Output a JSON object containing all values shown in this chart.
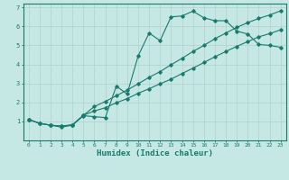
{
  "xlabel": "Humidex (Indice chaleur)",
  "ylabel": "",
  "bg_color": "#c5e8e4",
  "grid_color": "#b0d0cc",
  "line_color": "#1a7a6e",
  "spine_color": "#1a7a6e",
  "xlim": [
    -0.5,
    23.5
  ],
  "ylim": [
    0,
    7.2
  ],
  "xticks": [
    0,
    1,
    2,
    3,
    4,
    5,
    6,
    7,
    8,
    9,
    10,
    11,
    12,
    13,
    14,
    15,
    16,
    17,
    18,
    19,
    20,
    21,
    22,
    23
  ],
  "yticks": [
    1,
    2,
    3,
    4,
    5,
    6,
    7
  ],
  "line1_x": [
    0,
    1,
    2,
    3,
    4,
    5,
    6,
    7,
    8,
    9,
    10,
    11,
    12,
    13,
    14,
    15,
    16,
    17,
    18,
    19,
    20,
    21,
    22,
    23
  ],
  "line1_y": [
    1.1,
    0.9,
    0.8,
    0.7,
    0.8,
    1.3,
    1.25,
    1.2,
    2.85,
    2.45,
    4.45,
    5.65,
    5.25,
    6.5,
    6.55,
    6.8,
    6.45,
    6.3,
    6.3,
    5.75,
    5.6,
    5.05,
    5.0,
    4.9
  ],
  "line2_x": [
    0,
    1,
    2,
    3,
    4,
    5,
    6,
    7,
    8,
    9,
    10,
    11,
    12,
    13,
    14,
    15,
    16,
    17,
    18,
    19,
    20,
    21,
    22,
    23
  ],
  "line2_y": [
    1.1,
    0.9,
    0.8,
    0.75,
    0.82,
    1.32,
    1.55,
    1.72,
    1.98,
    2.2,
    2.48,
    2.72,
    2.98,
    3.22,
    3.52,
    3.8,
    4.1,
    4.4,
    4.68,
    4.95,
    5.2,
    5.45,
    5.62,
    5.82
  ],
  "line3_x": [
    0,
    1,
    2,
    3,
    4,
    5,
    6,
    7,
    8,
    9,
    10,
    11,
    12,
    13,
    14,
    15,
    16,
    17,
    18,
    19,
    20,
    21,
    22,
    23
  ],
  "line3_y": [
    1.1,
    0.9,
    0.8,
    0.75,
    0.82,
    1.32,
    1.78,
    2.05,
    2.35,
    2.65,
    2.98,
    3.32,
    3.62,
    3.98,
    4.32,
    4.68,
    5.0,
    5.35,
    5.65,
    5.95,
    6.2,
    6.42,
    6.6,
    6.82
  ]
}
